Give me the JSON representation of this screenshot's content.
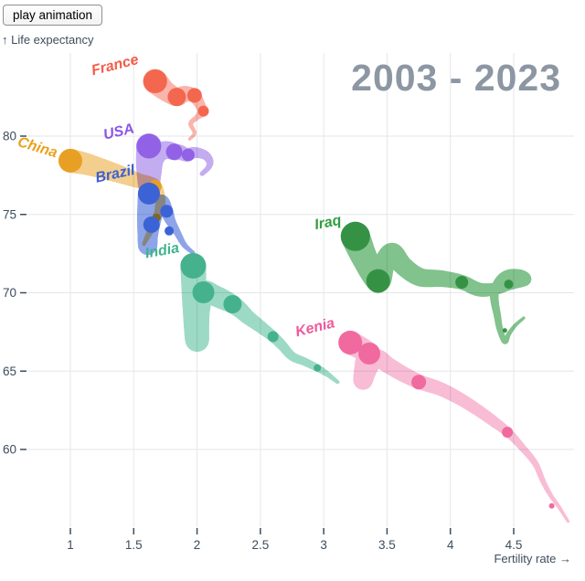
{
  "button": {
    "label": "play animation"
  },
  "chart_data": {
    "type": "scatter",
    "subtype": "trajectory-trails",
    "title": "2003 - 2023",
    "x_axis": {
      "label": "Fertility rate →",
      "ticks": [
        1,
        1.5,
        2,
        2.5,
        3,
        3.5,
        4,
        4.5
      ],
      "range": [
        0.66,
        5.0
      ],
      "grid": true
    },
    "y_axis": {
      "label": "↑ Life expectancy",
      "ticks": [
        60,
        65,
        70,
        75,
        80
      ],
      "range": [
        55.2,
        85.2
      ],
      "grid": true
    },
    "legend_position": "labels-on-chart",
    "series": [
      {
        "name": "france",
        "color": "#f4705f",
        "bubble_color": "#f3674f",
        "band_opacity": 0.52,
        "label": {
          "text": "France",
          "x": 1.36,
          "y": 84.55,
          "rotation": -14,
          "color": "#f45a48"
        },
        "trail": [
          [
            1.94,
            79.8,
            1.5
          ],
          [
            1.98,
            80.2,
            2
          ],
          [
            1.95,
            80.8,
            2.5
          ],
          [
            2.0,
            81.2,
            3
          ],
          [
            2.04,
            81.6,
            5
          ],
          [
            2.01,
            82.2,
            6
          ],
          [
            1.97,
            82.6,
            7.5
          ],
          [
            1.9,
            82.7,
            8.5
          ],
          [
            1.84,
            82.5,
            10
          ],
          [
            1.75,
            82.9,
            11
          ],
          [
            1.67,
            83.5,
            13.5
          ]
        ],
        "bubbles": [
          [
            1.67,
            83.5,
            13
          ],
          [
            1.84,
            82.5,
            10
          ],
          [
            1.98,
            82.6,
            8
          ],
          [
            2.05,
            81.6,
            6
          ]
        ]
      },
      {
        "name": "usa",
        "color": "#9468e6",
        "bubble_color": "#9162e6",
        "band_opacity": 0.55,
        "label": {
          "text": "USA",
          "x": 1.39,
          "y": 80.3,
          "rotation": -13,
          "color": "#8b54e8"
        },
        "trail": [
          [
            2.04,
            77.6,
            2.5
          ],
          [
            2.09,
            78.0,
            3
          ],
          [
            2.1,
            78.4,
            4
          ],
          [
            2.06,
            78.8,
            5
          ],
          [
            1.98,
            78.95,
            6
          ],
          [
            1.92,
            78.8,
            7
          ],
          [
            1.87,
            78.95,
            8
          ],
          [
            1.82,
            79.0,
            9
          ],
          [
            1.77,
            79.1,
            9.5
          ],
          [
            1.71,
            79.0,
            10
          ],
          [
            1.66,
            78.5,
            10.5
          ],
          [
            1.64,
            77.7,
            11
          ],
          [
            1.62,
            76.85,
            11.5
          ],
          [
            1.61,
            78.1,
            12.5
          ],
          [
            1.62,
            79.36,
            14
          ]
        ],
        "bubbles": [
          [
            1.62,
            79.36,
            13.5
          ],
          [
            1.82,
            79.0,
            9
          ],
          [
            1.93,
            78.8,
            7
          ]
        ]
      },
      {
        "name": "china",
        "color": "#e9a52f",
        "bubble_color": "#e8a024",
        "band_opacity": 0.55,
        "label": {
          "text": "China",
          "x": 0.73,
          "y": 79.3,
          "rotation": 17,
          "color": "#e9a21c"
        },
        "trail": [
          [
            1.58,
            73.1,
            2
          ],
          [
            1.61,
            73.6,
            3
          ],
          [
            1.65,
            74.2,
            4
          ],
          [
            1.68,
            74.8,
            4.5
          ],
          [
            1.7,
            75.2,
            5
          ],
          [
            1.71,
            75.75,
            5.5
          ],
          [
            1.7,
            76.3,
            6
          ],
          [
            1.67,
            76.8,
            7
          ],
          [
            1.62,
            77.0,
            7.5
          ],
          [
            1.54,
            77.15,
            8
          ],
          [
            1.45,
            77.4,
            9
          ],
          [
            1.34,
            77.7,
            10
          ],
          [
            1.22,
            78.0,
            11
          ],
          [
            1.11,
            78.25,
            12
          ],
          [
            1.0,
            78.43,
            13
          ]
        ],
        "bubbles": [
          [
            1.0,
            78.43,
            13
          ],
          [
            1.67,
            76.8,
            7
          ],
          [
            1.68,
            74.8,
            4.5
          ]
        ]
      },
      {
        "name": "brazil",
        "color": "#4168d9",
        "bubble_color": "#3c63d6",
        "band_opacity": 0.6,
        "label": {
          "text": "Brazil",
          "x": 1.36,
          "y": 77.6,
          "rotation": -12,
          "color": "#3a5fd4"
        },
        "trail": [
          [
            1.97,
            72.55,
            2
          ],
          [
            1.9,
            73.05,
            3
          ],
          [
            1.84,
            73.9,
            4
          ],
          [
            1.79,
            74.6,
            5.5
          ],
          [
            1.76,
            75.2,
            7
          ],
          [
            1.72,
            75.8,
            8
          ],
          [
            1.68,
            75.3,
            8.5
          ],
          [
            1.65,
            74.6,
            9
          ],
          [
            1.62,
            73.7,
            10
          ],
          [
            1.61,
            73.05,
            10.5
          ],
          [
            1.61,
            74.7,
            11.5
          ],
          [
            1.62,
            76.33,
            12
          ]
        ],
        "bubbles": [
          [
            1.62,
            76.33,
            12
          ],
          [
            1.76,
            75.2,
            7
          ],
          [
            1.64,
            74.35,
            9
          ],
          [
            1.78,
            73.95,
            5
          ]
        ]
      },
      {
        "name": "india",
        "color": "#4cbb97",
        "bubble_color": "#45b28d",
        "band_opacity": 0.55,
        "label": {
          "text": "India",
          "x": 1.73,
          "y": 72.7,
          "rotation": -10,
          "color": "#3eb48c"
        },
        "trail": [
          [
            3.11,
            64.3,
            2
          ],
          [
            3.03,
            64.8,
            3
          ],
          [
            2.95,
            65.2,
            4
          ],
          [
            2.85,
            65.6,
            4.5
          ],
          [
            2.75,
            65.95,
            5
          ],
          [
            2.67,
            66.65,
            5.5
          ],
          [
            2.6,
            67.2,
            6
          ],
          [
            2.49,
            67.9,
            7
          ],
          [
            2.4,
            68.45,
            8
          ],
          [
            2.34,
            68.9,
            9
          ],
          [
            2.28,
            69.27,
            10
          ],
          [
            2.21,
            69.56,
            11
          ],
          [
            2.13,
            69.85,
            11.5
          ],
          [
            2.05,
            70.03,
            12
          ],
          [
            2.01,
            68.75,
            12.5
          ],
          [
            2.0,
            67.0,
            13
          ],
          [
            1.98,
            69.45,
            13.5
          ],
          [
            1.97,
            71.72,
            14
          ]
        ],
        "bubbles": [
          [
            1.97,
            71.72,
            14
          ],
          [
            2.05,
            70.03,
            12
          ],
          [
            2.28,
            69.27,
            10
          ],
          [
            2.6,
            67.2,
            6
          ],
          [
            2.95,
            65.2,
            4
          ]
        ]
      },
      {
        "name": "iraq",
        "color": "#46a556",
        "bubble_color": "#359245",
        "band_opacity": 0.68,
        "label": {
          "text": "Iraq",
          "x": 3.04,
          "y": 74.5,
          "rotation": -11,
          "color": "#2e9e40"
        },
        "trail": [
          [
            4.58,
            68.4,
            1.5
          ],
          [
            4.51,
            67.9,
            2
          ],
          [
            4.46,
            67.35,
            2.5
          ],
          [
            4.43,
            66.9,
            3
          ],
          [
            4.39,
            67.7,
            3.5
          ],
          [
            4.37,
            68.6,
            4
          ],
          [
            4.35,
            69.45,
            4.5
          ],
          [
            4.35,
            70.15,
            5
          ],
          [
            4.4,
            70.85,
            5.5
          ],
          [
            4.47,
            71.15,
            6
          ],
          [
            4.56,
            71.08,
            6.5
          ],
          [
            4.59,
            70.8,
            6
          ],
          [
            4.47,
            70.5,
            5.5
          ],
          [
            4.36,
            70.26,
            6.5
          ],
          [
            4.23,
            70.2,
            7.5
          ],
          [
            4.09,
            70.67,
            8
          ],
          [
            3.93,
            70.9,
            9
          ],
          [
            3.76,
            71.0,
            10
          ],
          [
            3.63,
            71.7,
            10.5
          ],
          [
            3.54,
            72.55,
            11
          ],
          [
            3.47,
            71.7,
            12
          ],
          [
            3.43,
            70.8,
            13
          ],
          [
            3.33,
            72.1,
            14
          ],
          [
            3.25,
            73.6,
            16
          ]
        ],
        "bubbles": [
          [
            3.25,
            73.6,
            16
          ],
          [
            3.43,
            70.75,
            13
          ],
          [
            4.09,
            70.67,
            7
          ],
          [
            4.46,
            70.55,
            5
          ],
          [
            4.43,
            67.6,
            2.5
          ]
        ]
      },
      {
        "name": "kenia",
        "color": "#f27bac",
        "bubble_color": "#f0699f",
        "band_opacity": 0.5,
        "label": {
          "text": "Kenia",
          "x": 2.94,
          "y": 67.8,
          "rotation": -14,
          "color": "#f0589a"
        },
        "trail": [
          [
            4.93,
            55.4,
            1.5
          ],
          [
            4.86,
            56.3,
            2
          ],
          [
            4.79,
            57.1,
            2.5
          ],
          [
            4.73,
            58.0,
            3
          ],
          [
            4.67,
            59.1,
            3.5
          ],
          [
            4.57,
            60.1,
            4
          ],
          [
            4.46,
            61.05,
            5
          ],
          [
            4.34,
            61.8,
            6
          ],
          [
            4.2,
            62.6,
            6.5
          ],
          [
            4.06,
            63.3,
            7
          ],
          [
            3.91,
            63.9,
            7.5
          ],
          [
            3.76,
            64.3,
            8
          ],
          [
            3.63,
            64.8,
            8.5
          ],
          [
            3.51,
            65.37,
            9
          ],
          [
            3.42,
            65.83,
            9.5
          ],
          [
            3.35,
            65.13,
            10
          ],
          [
            3.31,
            64.43,
            10.5
          ],
          [
            3.33,
            65.66,
            11
          ],
          [
            3.36,
            66.12,
            11.5
          ],
          [
            3.21,
            66.82,
            13
          ]
        ],
        "bubbles": [
          [
            3.21,
            66.82,
            13
          ],
          [
            3.36,
            66.12,
            12
          ],
          [
            3.75,
            64.3,
            8
          ],
          [
            4.45,
            61.1,
            6
          ],
          [
            4.8,
            56.4,
            3
          ]
        ]
      }
    ]
  }
}
